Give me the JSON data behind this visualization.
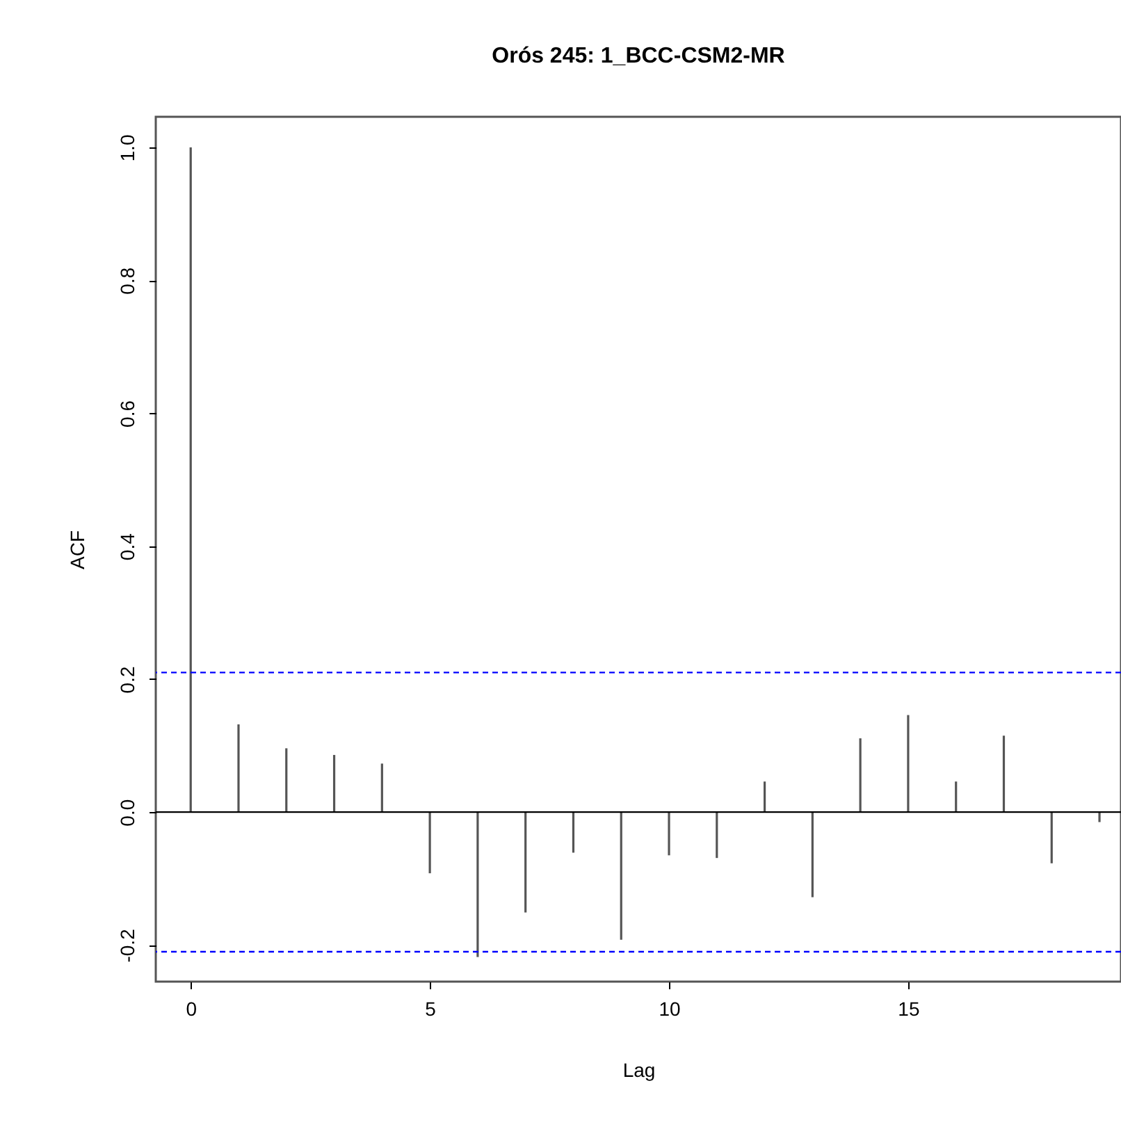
{
  "chart_data": {
    "type": "bar",
    "title": "Orós 245: 1_BCC-CSM2-MR",
    "xlabel": "Lag",
    "ylabel": "ACF",
    "x": [
      0,
      1,
      2,
      3,
      4,
      5,
      6,
      7,
      8,
      9,
      10,
      11,
      12,
      13,
      14,
      15,
      16,
      17,
      18,
      19
    ],
    "values": [
      1.0,
      0.132,
      0.096,
      0.086,
      0.073,
      -0.092,
      -0.218,
      -0.151,
      -0.061,
      -0.192,
      -0.065,
      -0.069,
      0.046,
      -0.128,
      0.111,
      0.146,
      0.046,
      0.115,
      -0.077,
      -0.015
    ],
    "color": "#555555",
    "xlim": [
      -0.73,
      19.45
    ],
    "xticks": [
      0,
      5,
      10,
      15
    ],
    "ylim": [
      -0.255,
      1.046
    ],
    "yticks": [
      {
        "value": -0.2,
        "label": "-0.2"
      },
      {
        "value": 0,
        "label": "0.0"
      },
      {
        "value": 0.2,
        "label": "0.2"
      },
      {
        "value": 0.4,
        "label": "0.4"
      },
      {
        "value": 0.6,
        "label": "0.6"
      },
      {
        "value": 0.8,
        "label": "0.8"
      },
      {
        "value": 1,
        "label": "1.0"
      }
    ],
    "ref_lines": [
      {
        "axis": "y",
        "value": 0.21,
        "color": "#0000ff",
        "line_style": "dashed"
      },
      {
        "axis": "y",
        "value": -0.21,
        "color": "#0000ff",
        "line_style": "dashed"
      },
      {
        "axis": "y",
        "value": 0,
        "color": "#000000",
        "line_style": "solid"
      }
    ],
    "grid": false
  }
}
